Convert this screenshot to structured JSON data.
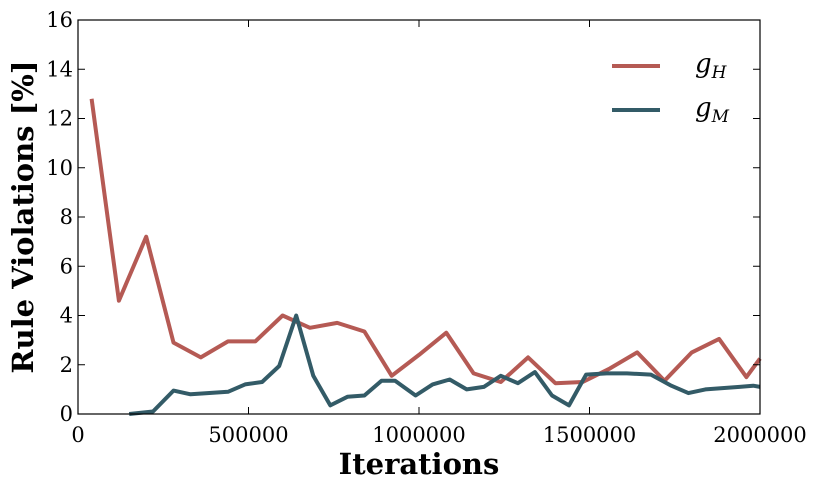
{
  "chart_data": {
    "type": "line",
    "title": "",
    "xlabel": "Iterations",
    "ylabel": "Rule Violations [%]",
    "xlim": [
      0,
      2000000
    ],
    "ylim": [
      0,
      16
    ],
    "xticks": [
      0,
      500000,
      1000000,
      1500000,
      2000000
    ],
    "xtick_labels": [
      "0",
      "500000",
      "1000000",
      "1500000",
      "2000000"
    ],
    "yticks": [
      0,
      2,
      4,
      6,
      8,
      10,
      12,
      14,
      16
    ],
    "ytick_labels": [
      "0",
      "2",
      "4",
      "6",
      "8",
      "10",
      "12",
      "14",
      "16"
    ],
    "grid": false,
    "legend_position": "top-right",
    "series": [
      {
        "name": "g",
        "subscript": "H",
        "color": "#b55a54",
        "x": [
          40000,
          120000,
          200000,
          280000,
          360000,
          440000,
          520000,
          600000,
          680000,
          760000,
          840000,
          920000,
          1000000,
          1080000,
          1160000,
          1240000,
          1320000,
          1400000,
          1480000,
          1560000,
          1640000,
          1720000,
          1800000,
          1880000,
          1960000,
          2000000
        ],
        "y": [
          12.8,
          4.6,
          7.2,
          2.9,
          2.3,
          2.95,
          2.95,
          4.0,
          3.5,
          3.7,
          3.35,
          1.55,
          2.4,
          3.3,
          1.65,
          1.3,
          2.3,
          1.25,
          1.3,
          1.85,
          2.5,
          1.35,
          2.5,
          3.05,
          1.5,
          2.25
        ]
      },
      {
        "name": "g",
        "subscript": "M",
        "color": "#335b67",
        "x": [
          150000,
          220000,
          280000,
          330000,
          380000,
          440000,
          490000,
          540000,
          590000,
          640000,
          690000,
          740000,
          790000,
          840000,
          890000,
          930000,
          990000,
          1040000,
          1090000,
          1140000,
          1190000,
          1240000,
          1290000,
          1340000,
          1390000,
          1440000,
          1490000,
          1550000,
          1610000,
          1680000,
          1740000,
          1790000,
          1840000,
          1890000,
          1940000,
          1980000,
          2000000
        ],
        "y": [
          0.0,
          0.1,
          0.95,
          0.8,
          0.85,
          0.9,
          1.2,
          1.3,
          1.95,
          4.0,
          1.55,
          0.35,
          0.7,
          0.75,
          1.35,
          1.35,
          0.75,
          1.2,
          1.4,
          1.0,
          1.1,
          1.55,
          1.25,
          1.7,
          0.75,
          0.35,
          1.6,
          1.65,
          1.65,
          1.6,
          1.15,
          0.85,
          1.0,
          1.05,
          1.1,
          1.15,
          1.1
        ]
      }
    ]
  }
}
